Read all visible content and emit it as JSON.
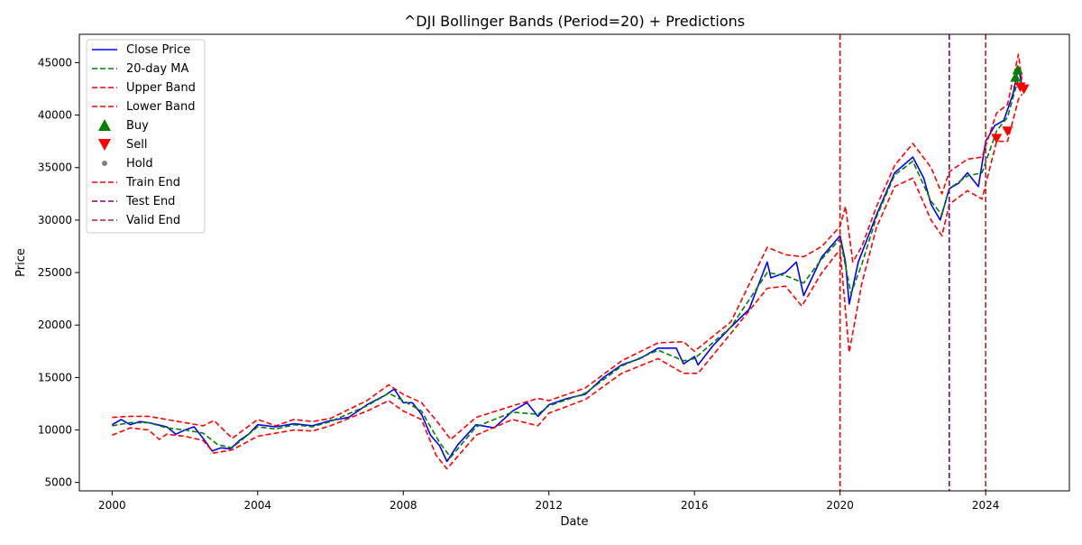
{
  "chart_data": {
    "type": "line",
    "title": "^DJI Bollinger Bands (Period=20) + Predictions",
    "xlabel": "Date",
    "ylabel": "Price",
    "x_ticks": [
      "2000",
      "2004",
      "2008",
      "2012",
      "2016",
      "2020",
      "2024"
    ],
    "y_ticks": [
      "5000",
      "10000",
      "15000",
      "20000",
      "25000",
      "30000",
      "35000",
      "40000",
      "45000"
    ],
    "xlim": [
      1999.1,
      2026.3
    ],
    "ylim": [
      4200,
      47700
    ],
    "grid": false,
    "legend_position": "top-left",
    "colors": {
      "close": "#0000ff",
      "ma": "#008000",
      "upper": "#ff0000",
      "lower": "#ff0000",
      "buy": "#008000",
      "sell": "#ff0000",
      "hold": "#808080",
      "train_end": "#ff0000",
      "test_end": "#800080",
      "valid_end": "#a52a2a"
    },
    "legend": [
      {
        "key": "close",
        "label": "Close Price",
        "style": "solid"
      },
      {
        "key": "ma",
        "label": "20-day MA",
        "style": "dashed"
      },
      {
        "key": "upper",
        "label": "Upper Band",
        "style": "dashed"
      },
      {
        "key": "lower",
        "label": "Lower Band",
        "style": "dashed"
      },
      {
        "key": "buy",
        "label": "Buy",
        "style": "triangle-up"
      },
      {
        "key": "sell",
        "label": "Sell",
        "style": "triangle-down"
      },
      {
        "key": "hold",
        "label": "Hold",
        "style": "dot"
      },
      {
        "key": "train_end",
        "label": "Train End",
        "style": "dashed"
      },
      {
        "key": "test_end",
        "label": "Test End",
        "style": "dashed"
      },
      {
        "key": "valid_end",
        "label": "Valid End",
        "style": "dashed"
      }
    ],
    "vlines": [
      {
        "name": "Train End",
        "x": 2020.0,
        "color": "#ff0000"
      },
      {
        "name": "Test End",
        "x": 2023.0,
        "color": "#800080"
      },
      {
        "name": "Valid End",
        "x": 2024.0,
        "color": "#a52a2a"
      }
    ],
    "series": [
      {
        "name": "Close Price",
        "x": [
          2000.0,
          2000.25,
          2000.5,
          2000.75,
          2001.0,
          2001.25,
          2001.5,
          2001.75,
          2002.0,
          2002.25,
          2002.5,
          2002.75,
          2003.0,
          2003.25,
          2003.5,
          2003.75,
          2004.0,
          2004.5,
          2005.0,
          2005.5,
          2006.0,
          2006.5,
          2007.0,
          2007.5,
          2007.75,
          2008.0,
          2008.25,
          2008.5,
          2008.75,
          2009.0,
          2009.2,
          2009.5,
          2010.0,
          2010.5,
          2011.0,
          2011.4,
          2011.7,
          2012.0,
          2012.5,
          2013.0,
          2013.5,
          2014.0,
          2014.5,
          2015.0,
          2015.5,
          2015.7,
          2016.0,
          2016.1,
          2016.5,
          2017.0,
          2017.5,
          2018.0,
          2018.1,
          2018.5,
          2018.8,
          2019.0,
          2019.5,
          2020.0,
          2020.15,
          2020.25,
          2020.5,
          2021.0,
          2021.5,
          2022.0,
          2022.3,
          2022.5,
          2022.75,
          2023.0,
          2023.25,
          2023.5,
          2023.8,
          2024.0,
          2024.25,
          2024.5,
          2024.75,
          2024.9,
          2025.0
        ],
        "y": [
          10500,
          11000,
          10500,
          10800,
          10700,
          10500,
          10300,
          9600,
          10000,
          10300,
          9200,
          8000,
          8300,
          8200,
          9000,
          9600,
          10500,
          10300,
          10600,
          10400,
          10900,
          11200,
          12400,
          13300,
          13900,
          12600,
          12600,
          11500,
          9500,
          8500,
          7000,
          8600,
          10500,
          10200,
          11800,
          12600,
          11300,
          12400,
          13000,
          13400,
          15000,
          16200,
          16800,
          17800,
          17800,
          16300,
          17000,
          16200,
          18000,
          19800,
          21500,
          26000,
          24500,
          25000,
          26000,
          22800,
          26500,
          28500,
          26000,
          22000,
          26000,
          30500,
          34500,
          36000,
          34000,
          31500,
          30000,
          33000,
          33500,
          34500,
          33200,
          37500,
          39000,
          39500,
          42000,
          44500,
          42800
        ]
      },
      {
        "name": "20-day MA",
        "x": [
          2000.0,
          2000.5,
          2001.0,
          2001.5,
          2002.0,
          2002.5,
          2002.9,
          2003.3,
          2004.0,
          2004.5,
          2005.0,
          2005.5,
          2006.0,
          2007.0,
          2007.6,
          2008.0,
          2008.5,
          2009.0,
          2009.3,
          2010.0,
          2011.0,
          2011.7,
          2012.0,
          2013.0,
          2014.0,
          2015.0,
          2015.7,
          2016.0,
          2017.0,
          2018.0,
          2018.5,
          2019.0,
          2019.5,
          2020.0,
          2020.3,
          2020.6,
          2021.0,
          2021.5,
          2022.0,
          2022.5,
          2022.8,
          2023.0,
          2023.5,
          2023.9,
          2024.3,
          2024.6,
          2024.9,
          2025.0
        ],
        "y": [
          10400,
          10700,
          10700,
          10200,
          10000,
          9700,
          8600,
          8300,
          10300,
          10100,
          10500,
          10300,
          10800,
          12300,
          13500,
          12800,
          11800,
          8800,
          7400,
          10300,
          11700,
          11500,
          12300,
          13500,
          16100,
          17600,
          16600,
          16800,
          19800,
          25000,
          24700,
          24000,
          26300,
          28200,
          23000,
          25800,
          30300,
          34300,
          35600,
          31800,
          30500,
          33000,
          34200,
          34500,
          38500,
          39800,
          43500,
          43000
        ]
      },
      {
        "name": "Upper Band",
        "x": [
          2000.0,
          2000.5,
          2001.0,
          2001.5,
          2002.0,
          2002.5,
          2002.8,
          2003.3,
          2004.0,
          2004.5,
          2005.0,
          2005.5,
          2006.0,
          2007.0,
          2007.6,
          2008.0,
          2008.5,
          2009.0,
          2009.3,
          2010.0,
          2011.0,
          2011.7,
          2012.0,
          2013.0,
          2014.0,
          2015.0,
          2015.7,
          2016.0,
          2017.0,
          2018.0,
          2018.5,
          2019.0,
          2019.5,
          2020.0,
          2020.15,
          2020.35,
          2020.6,
          2021.0,
          2021.5,
          2022.0,
          2022.5,
          2022.8,
          2023.0,
          2023.5,
          2023.9,
          2024.3,
          2024.6,
          2024.9,
          2025.0
        ],
        "y": [
          11200,
          11300,
          11300,
          11000,
          10700,
          10400,
          10900,
          9200,
          11000,
          10400,
          11000,
          10800,
          11100,
          12800,
          14300,
          13400,
          12600,
          10500,
          9100,
          11200,
          12300,
          13000,
          12800,
          14000,
          16600,
          18300,
          18400,
          17500,
          20300,
          27400,
          26700,
          26500,
          27500,
          29400,
          31300,
          26000,
          27500,
          31300,
          35200,
          37300,
          35000,
          32500,
          34600,
          35800,
          36000,
          40200,
          41000,
          45800,
          43200
        ]
      },
      {
        "name": "Lower Band",
        "x": [
          2000.0,
          2000.5,
          2001.0,
          2001.3,
          2001.5,
          2002.0,
          2002.5,
          2002.8,
          2003.3,
          2004.0,
          2004.5,
          2005.0,
          2005.5,
          2006.0,
          2007.0,
          2007.6,
          2008.0,
          2008.5,
          2008.9,
          2009.2,
          2010.0,
          2011.0,
          2011.7,
          2012.0,
          2013.0,
          2014.0,
          2015.0,
          2015.7,
          2016.1,
          2017.0,
          2018.0,
          2018.5,
          2018.95,
          2019.5,
          2020.0,
          2020.25,
          2020.6,
          2021.0,
          2021.5,
          2022.0,
          2022.5,
          2022.8,
          2023.0,
          2023.5,
          2023.9,
          2024.3,
          2024.6,
          2024.9,
          2025.0
        ],
        "y": [
          9500,
          10200,
          10000,
          9100,
          9600,
          9400,
          9000,
          7800,
          8100,
          9400,
          9700,
          10000,
          9900,
          10400,
          11800,
          12800,
          11800,
          11000,
          7600,
          6300,
          9500,
          11000,
          10400,
          11600,
          12900,
          15400,
          16800,
          15400,
          15400,
          19200,
          23500,
          23700,
          21800,
          25000,
          27200,
          17400,
          24000,
          29300,
          33200,
          34000,
          30000,
          28500,
          31500,
          32800,
          32000,
          37500,
          37500,
          41500,
          42000
        ]
      }
    ],
    "markers": [
      {
        "type": "buy",
        "x": 2024.82,
        "y": 43600
      },
      {
        "type": "buy",
        "x": 2024.88,
        "y": 44300
      },
      {
        "type": "sell",
        "x": 2024.3,
        "y": 37800
      },
      {
        "type": "sell",
        "x": 2024.6,
        "y": 38500
      },
      {
        "type": "sell",
        "x": 2024.95,
        "y": 42700
      },
      {
        "type": "sell",
        "x": 2025.05,
        "y": 42500
      }
    ]
  }
}
